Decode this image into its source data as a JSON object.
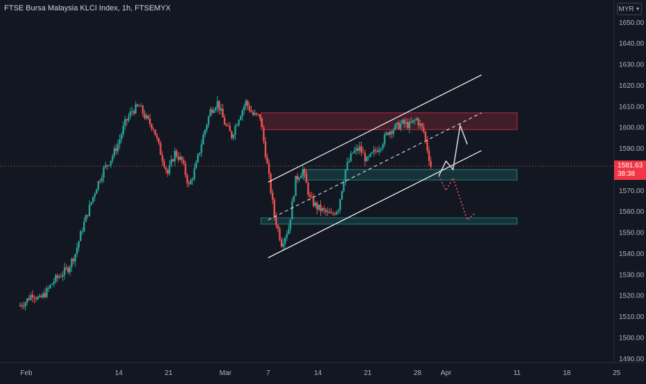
{
  "header": {
    "title": "FTSE Bursa Malaysia KLCI Index, 1h, FTSEMYX",
    "currency": "MYR"
  },
  "last_price": {
    "price": "1581.63",
    "countdown": "38:38"
  },
  "colors": {
    "background": "#131722",
    "up": "#26a69a",
    "down": "#ef5350",
    "grid": "#1e222d",
    "axis_text": "#b2b5be",
    "resistance_zone": "#f23645",
    "support_zone": "#26a69a"
  },
  "chart_data": {
    "type": "candlestick",
    "title": "FTSE Bursa Malaysia KLCI Index, 1h, FTSEMYX",
    "timeframe": "1h",
    "ylim": [
      1483,
      1660
    ],
    "y_ticks": [
      1490,
      1500,
      1510,
      1520,
      1530,
      1540,
      1550,
      1560,
      1570,
      1580,
      1590,
      1600,
      1610,
      1620,
      1630,
      1640,
      1650
    ],
    "x_ticks": [
      {
        "label": "Feb",
        "x": "Feb 1"
      },
      {
        "label": "14",
        "x": "Feb 14"
      },
      {
        "label": "21",
        "x": "Feb 21"
      },
      {
        "label": "Mar",
        "x": "Mar 1"
      },
      {
        "label": "7",
        "x": "Mar 7"
      },
      {
        "label": "14",
        "x": "Mar 14"
      },
      {
        "label": "21",
        "x": "Mar 21"
      },
      {
        "label": "28",
        "x": "Mar 28"
      },
      {
        "label": "Apr",
        "x": "Apr 1"
      },
      {
        "label": "11",
        "x": "Apr 11"
      },
      {
        "label": "18",
        "x": "Apr 18"
      },
      {
        "label": "25",
        "x": "Apr 25"
      }
    ],
    "grid": false,
    "last_price": 1581.63,
    "price_path": [
      [
        "Jan 31",
        1515
      ],
      [
        "Feb 1",
        1517
      ],
      [
        "Feb 2",
        1521
      ],
      [
        "Feb 3",
        1518
      ],
      [
        "Feb 4",
        1522
      ],
      [
        "Feb 5",
        1527
      ],
      [
        "Feb 6",
        1530
      ],
      [
        "Feb 7",
        1533
      ],
      [
        "Feb 8",
        1540
      ],
      [
        "Feb 9",
        1552
      ],
      [
        "Feb 10",
        1562
      ],
      [
        "Feb 11",
        1572
      ],
      [
        "Feb 12",
        1580
      ],
      [
        "Feb 13",
        1585
      ],
      [
        "Feb 14",
        1592
      ],
      [
        "Feb 15",
        1602
      ],
      [
        "Feb 16",
        1608
      ],
      [
        "Feb 17",
        1610
      ],
      [
        "Feb 18",
        1604
      ],
      [
        "Feb 19",
        1600
      ],
      [
        "Feb 20",
        1588
      ],
      [
        "Feb 21",
        1578
      ],
      [
        "Feb 22",
        1588
      ],
      [
        "Feb 23",
        1584
      ],
      [
        "Feb 24",
        1572
      ],
      [
        "Feb 25",
        1582
      ],
      [
        "Feb 26",
        1596
      ],
      [
        "Feb 27",
        1608
      ],
      [
        "Feb 28",
        1612
      ],
      [
        "Mar 1",
        1602
      ],
      [
        "Mar 2",
        1596
      ],
      [
        "Mar 3",
        1605
      ],
      [
        "Mar 4",
        1612
      ],
      [
        "Mar 5",
        1606
      ],
      [
        "Mar 6",
        1605
      ],
      [
        "Mar 7",
        1582
      ],
      [
        "Mar 8",
        1558
      ],
      [
        "Mar 9",
        1545
      ],
      [
        "Mar 10",
        1552
      ],
      [
        "Mar 11",
        1575
      ],
      [
        "Mar 12",
        1580
      ],
      [
        "Mar 13",
        1566
      ],
      [
        "Mar 14",
        1562
      ],
      [
        "Mar 15",
        1560
      ],
      [
        "Mar 16",
        1558
      ],
      [
        "Mar 17",
        1562
      ],
      [
        "Mar 18",
        1580
      ],
      [
        "Mar 19",
        1588
      ],
      [
        "Mar 20",
        1590
      ],
      [
        "Mar 21",
        1584
      ],
      [
        "Mar 22",
        1588
      ],
      [
        "Mar 23",
        1592
      ],
      [
        "Mar 24",
        1598
      ],
      [
        "Mar 25",
        1600
      ],
      [
        "Mar 26",
        1602
      ],
      [
        "Mar 27",
        1601
      ],
      [
        "Mar 28",
        1604
      ],
      [
        "Mar 29",
        1598
      ],
      [
        "Mar 30",
        1581.63
      ]
    ],
    "zones": [
      {
        "name": "resistance",
        "y_low": 1599,
        "y_high": 1607,
        "x_start": "Mar 6",
        "x_end": "Apr 11"
      },
      {
        "name": "support-upper",
        "y_low": 1575,
        "y_high": 1580,
        "x_start": "Mar 12",
        "x_end": "Apr 11"
      },
      {
        "name": "support-lower",
        "y_low": 1554,
        "y_high": 1557,
        "x_start": "Mar 6",
        "x_end": "Apr 11"
      }
    ],
    "trendlines": [
      {
        "name": "channel-upper",
        "style": "solid",
        "from": [
          "Mar 7",
          1574
        ],
        "to": [
          "Apr 6",
          1625
        ]
      },
      {
        "name": "channel-middle",
        "style": "dashed",
        "from": [
          "Mar 7",
          1556
        ],
        "to": [
          "Apr 6",
          1607
        ]
      },
      {
        "name": "channel-lower",
        "style": "solid",
        "from": [
          "Mar 7",
          1538
        ],
        "to": [
          "Apr 6",
          1589
        ]
      }
    ],
    "projections": [
      {
        "name": "bullish-path",
        "style": "solid",
        "points": [
          [
            "Mar 31",
            1577
          ],
          [
            "Apr 1",
            1584
          ],
          [
            "Apr 2",
            1580
          ],
          [
            "Apr 3",
            1601
          ],
          [
            "Apr 4",
            1592
          ]
        ]
      },
      {
        "name": "bearish-path",
        "style": "dotted",
        "points": [
          [
            "Mar 31",
            1577
          ],
          [
            "Apr 1",
            1570
          ],
          [
            "Apr 2",
            1576
          ],
          [
            "Apr 4",
            1556
          ],
          [
            "Apr 5",
            1559
          ]
        ]
      }
    ]
  }
}
